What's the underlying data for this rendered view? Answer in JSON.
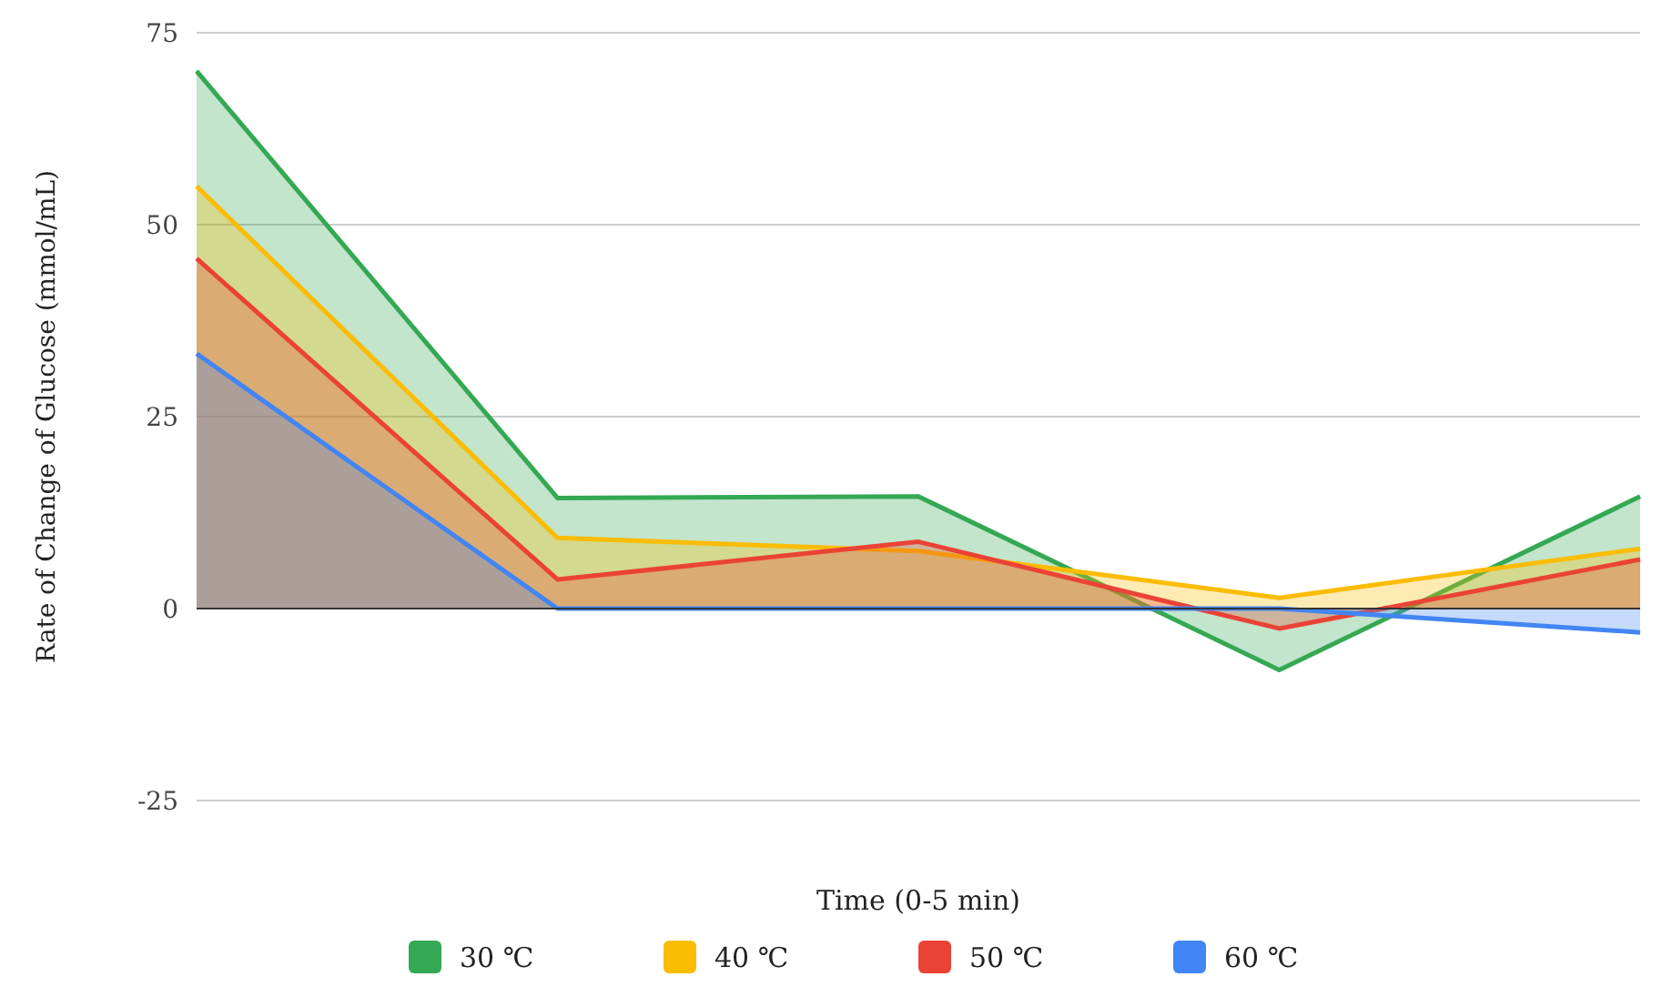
{
  "chart_data": {
    "type": "area",
    "xlabel": "Time (0-5 min)",
    "ylabel": "Rate of Change of Glucose (mmol/mL)",
    "categories": [
      null,
      null,
      null,
      null,
      null
    ],
    "ylim": [
      -25,
      75
    ],
    "yticks": [
      -25,
      0,
      25,
      50,
      75
    ],
    "grid": "y",
    "legend": "bottom",
    "series": [
      {
        "name": "30 ℃",
        "color": "#34a853",
        "values": [
          70,
          14.4,
          14.6,
          -8,
          14.6
        ]
      },
      {
        "name": "40 ℃",
        "color": "#fbbc04",
        "values": [
          55,
          9.2,
          7.5,
          1.4,
          7.8
        ]
      },
      {
        "name": "50 ℃",
        "color": "#ea4335",
        "values": [
          45.6,
          3.8,
          8.7,
          -2.6,
          6.4
        ]
      },
      {
        "name": "60 ℃",
        "color": "#4285f4",
        "values": [
          33.2,
          0,
          0,
          0,
          -3.1
        ]
      }
    ]
  }
}
